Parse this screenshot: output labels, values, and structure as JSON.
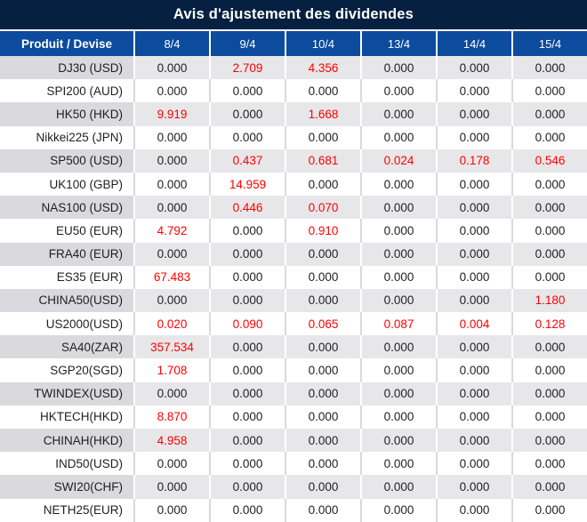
{
  "title": "Avis d'ajustement des dividendes",
  "table": {
    "product_header": "Produit / Devise",
    "date_headers": [
      "8/4",
      "9/4",
      "10/4",
      "13/4",
      "14/4",
      "15/4"
    ],
    "rows": [
      {
        "product": "DJ30 (USD)",
        "values": [
          "0.000",
          "2.709",
          "4.356",
          "0.000",
          "0.000",
          "0.000"
        ],
        "red_flags": [
          false,
          true,
          true,
          false,
          false,
          false
        ]
      },
      {
        "product": "SPI200 (AUD)",
        "values": [
          "0.000",
          "0.000",
          "0.000",
          "0.000",
          "0.000",
          "0.000"
        ],
        "red_flags": [
          false,
          false,
          false,
          false,
          false,
          false
        ]
      },
      {
        "product": "HK50 (HKD)",
        "values": [
          "9.919",
          "0.000",
          "1.668",
          "0.000",
          "0.000",
          "0.000"
        ],
        "red_flags": [
          true,
          false,
          true,
          false,
          false,
          false
        ]
      },
      {
        "product": "Nikkei225 (JPN)",
        "values": [
          "0.000",
          "0.000",
          "0.000",
          "0.000",
          "0.000",
          "0.000"
        ],
        "red_flags": [
          false,
          false,
          false,
          false,
          false,
          false
        ]
      },
      {
        "product": "SP500 (USD)",
        "values": [
          "0.000",
          "0.437",
          "0.681",
          "0.024",
          "0.178",
          "0.546"
        ],
        "red_flags": [
          false,
          true,
          true,
          true,
          true,
          true
        ]
      },
      {
        "product": "UK100 (GBP)",
        "values": [
          "0.000",
          "14.959",
          "0.000",
          "0.000",
          "0.000",
          "0.000"
        ],
        "red_flags": [
          false,
          true,
          false,
          false,
          false,
          false
        ]
      },
      {
        "product": "NAS100 (USD)",
        "values": [
          "0.000",
          "0.446",
          "0.070",
          "0.000",
          "0.000",
          "0.000"
        ],
        "red_flags": [
          false,
          true,
          true,
          false,
          false,
          false
        ]
      },
      {
        "product": "EU50 (EUR)",
        "values": [
          "4.792",
          "0.000",
          "0.910",
          "0.000",
          "0.000",
          "0.000"
        ],
        "red_flags": [
          true,
          false,
          true,
          false,
          false,
          false
        ]
      },
      {
        "product": "FRA40 (EUR)",
        "values": [
          "0.000",
          "0.000",
          "0.000",
          "0.000",
          "0.000",
          "0.000"
        ],
        "red_flags": [
          false,
          false,
          false,
          false,
          false,
          false
        ]
      },
      {
        "product": "ES35 (EUR)",
        "values": [
          "67.483",
          "0.000",
          "0.000",
          "0.000",
          "0.000",
          "0.000"
        ],
        "red_flags": [
          true,
          false,
          false,
          false,
          false,
          false
        ]
      },
      {
        "product": "CHINA50(USD)",
        "values": [
          "0.000",
          "0.000",
          "0.000",
          "0.000",
          "0.000",
          "1.180"
        ],
        "red_flags": [
          false,
          false,
          false,
          false,
          false,
          true
        ]
      },
      {
        "product": "US2000(USD)",
        "values": [
          "0.020",
          "0.090",
          "0.065",
          "0.087",
          "0.004",
          "0.128"
        ],
        "red_flags": [
          true,
          true,
          true,
          true,
          true,
          true
        ]
      },
      {
        "product": "SA40(ZAR)",
        "values": [
          "357.534",
          "0.000",
          "0.000",
          "0.000",
          "0.000",
          "0.000"
        ],
        "red_flags": [
          true,
          false,
          false,
          false,
          false,
          false
        ]
      },
      {
        "product": "SGP20(SGD)",
        "values": [
          "1.708",
          "0.000",
          "0.000",
          "0.000",
          "0.000",
          "0.000"
        ],
        "red_flags": [
          true,
          false,
          false,
          false,
          false,
          false
        ]
      },
      {
        "product": "TWINDEX(USD)",
        "values": [
          "0.000",
          "0.000",
          "0.000",
          "0.000",
          "0.000",
          "0.000"
        ],
        "red_flags": [
          false,
          false,
          false,
          false,
          false,
          false
        ]
      },
      {
        "product": "HKTECH(HKD)",
        "values": [
          "8.870",
          "0.000",
          "0.000",
          "0.000",
          "0.000",
          "0.000"
        ],
        "red_flags": [
          true,
          false,
          false,
          false,
          false,
          false
        ]
      },
      {
        "product": "CHINAH(HKD)",
        "values": [
          "4.958",
          "0.000",
          "0.000",
          "0.000",
          "0.000",
          "0.000"
        ],
        "red_flags": [
          true,
          false,
          false,
          false,
          false,
          false
        ]
      },
      {
        "product": "IND50(USD)",
        "values": [
          "0.000",
          "0.000",
          "0.000",
          "0.000",
          "0.000",
          "0.000"
        ],
        "red_flags": [
          false,
          false,
          false,
          false,
          false,
          false
        ]
      },
      {
        "product": "SWI20(CHF)",
        "values": [
          "0.000",
          "0.000",
          "0.000",
          "0.000",
          "0.000",
          "0.000"
        ],
        "red_flags": [
          false,
          false,
          false,
          false,
          false,
          false
        ]
      },
      {
        "product": "NETH25(EUR)",
        "values": [
          "0.000",
          "0.000",
          "0.000",
          "0.000",
          "0.000",
          "0.000"
        ],
        "red_flags": [
          false,
          false,
          false,
          false,
          false,
          false
        ]
      }
    ]
  },
  "colors": {
    "title_bg": "#052040",
    "header_bg": "#0C4B9D",
    "striped_product_bg": "#D9D9DE",
    "striped_value_bg": "#E7E7E9",
    "highlight_red": "#FF0000",
    "text_dark": "#1F1F1F",
    "plain_row_border": "#D9D9D9"
  }
}
